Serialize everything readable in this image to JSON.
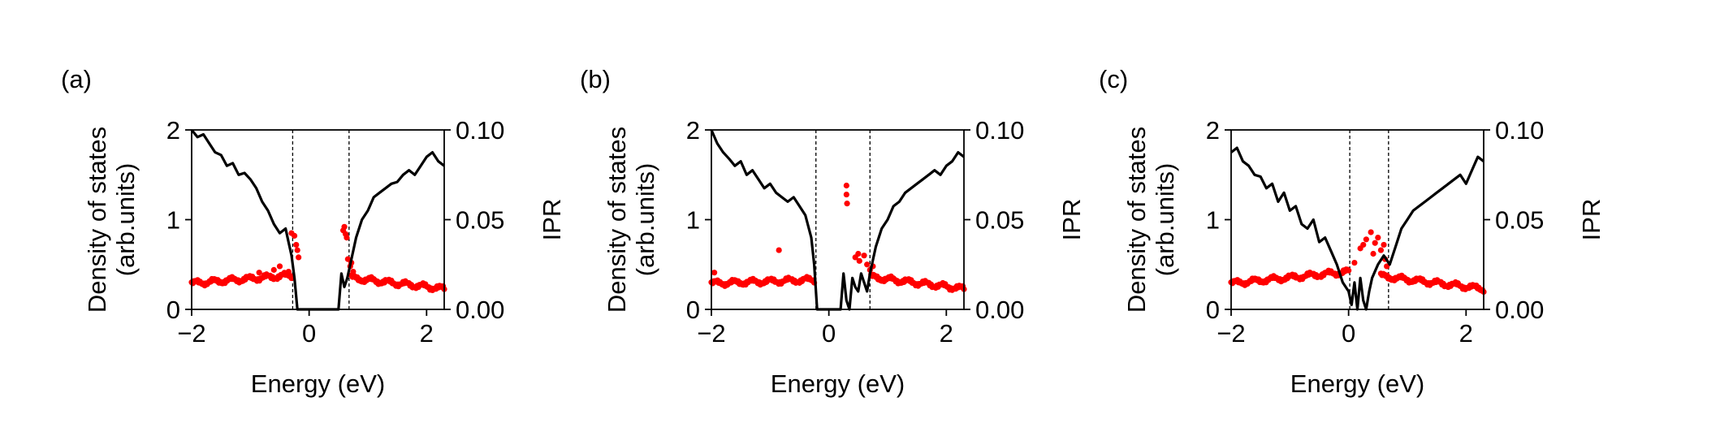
{
  "chart_data": [
    {
      "panel_label": "(a)",
      "type": "line",
      "xlabel": "Energy (eV)",
      "ylabel_left_line1": "Density of states",
      "ylabel_left_line2": "(arb.units)",
      "ylabel_right": "IPR",
      "xlim": [
        -2.0,
        2.3
      ],
      "ylim_left": [
        0,
        2
      ],
      "ylim_right": [
        0,
        0.1
      ],
      "xticks": [
        -2,
        0,
        2
      ],
      "xtick_labels": [
        "−2",
        "0",
        "2"
      ],
      "yticks_left": [
        0,
        1,
        2
      ],
      "ytick_labels_left": [
        "0",
        "1",
        "2"
      ],
      "yticks_right": [
        0,
        0.05,
        0.1
      ],
      "ytick_labels_right": [
        "0.00",
        "0.05",
        "0.10"
      ],
      "vlines": [
        -0.28,
        0.68
      ],
      "dos_color": "#000000",
      "ipr_color": "#ff0000",
      "dos_series": {
        "x": [
          -2.0,
          -1.9,
          -1.8,
          -1.7,
          -1.6,
          -1.5,
          -1.4,
          -1.3,
          -1.2,
          -1.1,
          -1.0,
          -0.9,
          -0.8,
          -0.7,
          -0.6,
          -0.5,
          -0.4,
          -0.35,
          -0.3,
          -0.25,
          -0.2,
          -0.1,
          0.0,
          0.1,
          0.2,
          0.3,
          0.4,
          0.5,
          0.55,
          0.6,
          0.65,
          0.7,
          0.8,
          0.9,
          1.0,
          1.1,
          1.2,
          1.3,
          1.4,
          1.5,
          1.6,
          1.7,
          1.8,
          1.9,
          2.0,
          2.1,
          2.2,
          2.3
        ],
        "y": [
          2.0,
          1.92,
          1.95,
          1.85,
          1.75,
          1.72,
          1.6,
          1.63,
          1.5,
          1.52,
          1.45,
          1.35,
          1.2,
          1.1,
          0.95,
          0.85,
          0.9,
          0.75,
          0.6,
          0.35,
          0.0,
          0.0,
          0.0,
          0.0,
          0.0,
          0.0,
          0.0,
          0.0,
          0.4,
          0.25,
          0.35,
          0.5,
          0.8,
          1.0,
          1.1,
          1.25,
          1.3,
          1.35,
          1.4,
          1.42,
          1.5,
          1.55,
          1.5,
          1.6,
          1.7,
          1.75,
          1.65,
          1.6
        ]
      },
      "ipr_band": {
        "x_start": -2.0,
        "x_end": -0.3,
        "y_start": 0.0145,
        "y_end": 0.019,
        "count": 85
      },
      "ipr_band2": {
        "x_start": 0.72,
        "x_end": 2.3,
        "y_start": 0.0175,
        "y_end": 0.0115,
        "count": 80
      },
      "ipr_extra": {
        "x": [
          -0.85,
          -0.6,
          -0.5,
          -0.35,
          -0.3,
          -0.25,
          -0.22,
          -0.2,
          -0.18,
          0.58,
          0.6,
          0.62,
          0.64,
          0.66,
          0.7,
          0.72,
          0.75
        ],
        "y": [
          0.0205,
          0.022,
          0.024,
          0.021,
          0.0425,
          0.041,
          0.036,
          0.033,
          0.029,
          0.044,
          0.046,
          0.042,
          0.04,
          0.028,
          0.024,
          0.026,
          0.021
        ]
      }
    },
    {
      "panel_label": "(b)",
      "type": "line",
      "xlabel": "Energy (eV)",
      "ylabel_left_line1": "Density of states",
      "ylabel_left_line2": "(arb.units)",
      "ylabel_right": "IPR",
      "xlim": [
        -2.0,
        2.3
      ],
      "ylim_left": [
        0,
        2
      ],
      "ylim_right": [
        0,
        0.1
      ],
      "xticks": [
        -2,
        0,
        2
      ],
      "xtick_labels": [
        "−2",
        "0",
        "2"
      ],
      "yticks_left": [
        0,
        1,
        2
      ],
      "ytick_labels_left": [
        "0",
        "1",
        "2"
      ],
      "yticks_right": [
        0,
        0.05,
        0.1
      ],
      "ytick_labels_right": [
        "0.00",
        "0.05",
        "0.10"
      ],
      "vlines": [
        -0.22,
        0.7
      ],
      "dos_color": "#000000",
      "ipr_color": "#ff0000",
      "dos_series": {
        "x": [
          -2.0,
          -1.9,
          -1.8,
          -1.7,
          -1.6,
          -1.5,
          -1.4,
          -1.3,
          -1.2,
          -1.1,
          -1.0,
          -0.9,
          -0.8,
          -0.7,
          -0.6,
          -0.5,
          -0.4,
          -0.3,
          -0.25,
          -0.2,
          -0.1,
          0.0,
          0.1,
          0.2,
          0.25,
          0.3,
          0.35,
          0.4,
          0.45,
          0.5,
          0.55,
          0.6,
          0.65,
          0.7,
          0.8,
          0.9,
          1.0,
          1.1,
          1.2,
          1.3,
          1.4,
          1.5,
          1.6,
          1.7,
          1.8,
          1.9,
          2.0,
          2.1,
          2.2,
          2.3
        ],
        "y": [
          2.0,
          1.85,
          1.75,
          1.68,
          1.6,
          1.65,
          1.5,
          1.55,
          1.45,
          1.35,
          1.4,
          1.3,
          1.25,
          1.2,
          1.25,
          1.15,
          1.05,
          0.8,
          0.5,
          0.0,
          0.0,
          0.0,
          0.0,
          0.0,
          0.4,
          0.1,
          0.0,
          0.35,
          0.25,
          0.2,
          0.4,
          0.3,
          0.2,
          0.4,
          0.7,
          0.9,
          1.0,
          1.15,
          1.2,
          1.3,
          1.35,
          1.4,
          1.45,
          1.5,
          1.55,
          1.5,
          1.6,
          1.65,
          1.75,
          1.7
        ]
      },
      "ipr_band": {
        "x_start": -2.0,
        "x_end": -0.25,
        "y_start": 0.0145,
        "y_end": 0.0165,
        "count": 85
      },
      "ipr_band2": {
        "x_start": 0.72,
        "x_end": 2.3,
        "y_start": 0.018,
        "y_end": 0.0115,
        "count": 80
      },
      "ipr_extra": {
        "x": [
          -1.95,
          -0.85,
          0.3,
          0.3,
          0.31,
          0.45,
          0.5,
          0.52,
          0.6,
          0.65,
          0.7,
          0.75
        ],
        "y": [
          0.0205,
          0.033,
          0.069,
          0.064,
          0.059,
          0.029,
          0.031,
          0.027,
          0.03,
          0.025,
          0.022,
          0.024
        ]
      }
    },
    {
      "panel_label": "(c)",
      "type": "line",
      "xlabel": "Energy (eV)",
      "ylabel_left_line1": "Density of states",
      "ylabel_left_line2": "(arb.units)",
      "ylabel_right": "IPR",
      "xlim": [
        -2.0,
        2.3
      ],
      "ylim_left": [
        0,
        2
      ],
      "ylim_right": [
        0,
        0.1
      ],
      "xticks": [
        -2,
        0,
        2
      ],
      "xtick_labels": [
        "−2",
        "0",
        "2"
      ],
      "yticks_left": [
        0,
        1,
        2
      ],
      "ytick_labels_left": [
        "0",
        "1",
        "2"
      ],
      "yticks_right": [
        0,
        0.05,
        0.1
      ],
      "ytick_labels_right": [
        "0.00",
        "0.05",
        "0.10"
      ],
      "vlines": [
        0.02,
        0.68
      ],
      "dos_color": "#000000",
      "ipr_color": "#ff0000",
      "dos_series": {
        "x": [
          -2.0,
          -1.9,
          -1.8,
          -1.7,
          -1.6,
          -1.5,
          -1.4,
          -1.3,
          -1.2,
          -1.1,
          -1.0,
          -0.9,
          -0.8,
          -0.7,
          -0.6,
          -0.5,
          -0.4,
          -0.3,
          -0.2,
          -0.1,
          0.0,
          0.05,
          0.1,
          0.15,
          0.2,
          0.25,
          0.3,
          0.35,
          0.4,
          0.5,
          0.6,
          0.65,
          0.7,
          0.8,
          0.9,
          1.0,
          1.1,
          1.2,
          1.3,
          1.4,
          1.5,
          1.6,
          1.7,
          1.8,
          1.9,
          2.0,
          2.1,
          2.2,
          2.3
        ],
        "y": [
          1.75,
          1.8,
          1.65,
          1.6,
          1.5,
          1.48,
          1.35,
          1.4,
          1.2,
          1.3,
          1.1,
          1.15,
          0.95,
          0.9,
          1.0,
          0.75,
          0.8,
          0.65,
          0.5,
          0.3,
          0.2,
          0.05,
          0.3,
          0.0,
          0.35,
          0.1,
          0.0,
          0.2,
          0.35,
          0.5,
          0.6,
          0.55,
          0.5,
          0.7,
          0.9,
          1.0,
          1.1,
          1.15,
          1.2,
          1.25,
          1.3,
          1.35,
          1.4,
          1.45,
          1.5,
          1.4,
          1.55,
          1.7,
          1.65
        ]
      },
      "ipr_band": {
        "x_start": -2.0,
        "x_end": 0.0,
        "y_start": 0.0145,
        "y_end": 0.021,
        "count": 95
      },
      "ipr_band2": {
        "x_start": 0.55,
        "x_end": 2.3,
        "y_start": 0.0185,
        "y_end": 0.0115,
        "count": 85
      },
      "ipr_extra": {
        "x": [
          0.1,
          0.2,
          0.25,
          0.3,
          0.38,
          0.42,
          0.45,
          0.5,
          0.55,
          0.6,
          0.62,
          0.65
        ],
        "y": [
          0.026,
          0.034,
          0.036,
          0.039,
          0.043,
          0.031,
          0.037,
          0.04,
          0.033,
          0.036,
          0.028,
          0.024
        ]
      }
    }
  ]
}
